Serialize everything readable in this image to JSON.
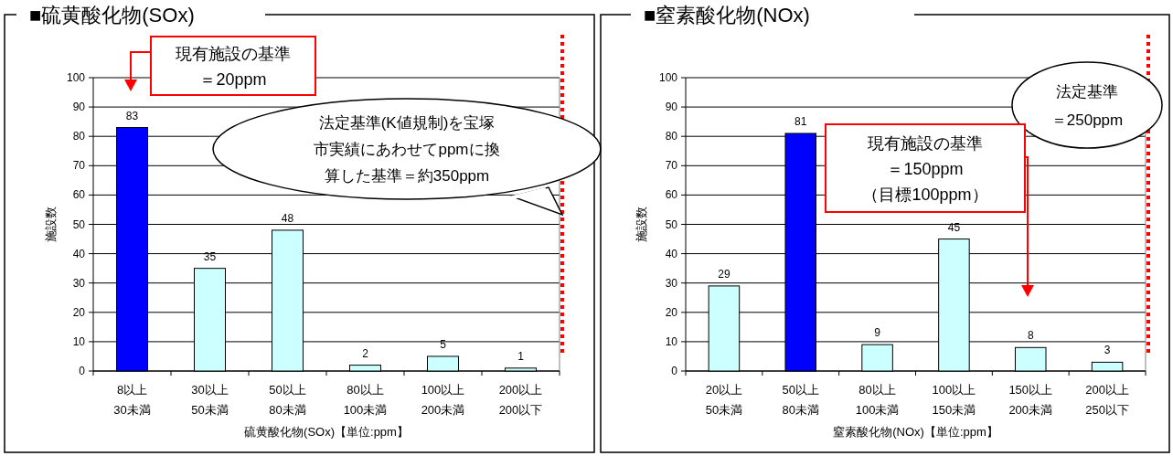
{
  "chart_data": [
    {
      "type": "bar",
      "title": "■硫黄酸化物(SOx)",
      "xlabel": "硫黄酸化物(SOx)【単位:ppm】",
      "ylabel": "施設数",
      "categories": [
        "8以上\n30未満",
        "30以上\n50未満",
        "50以上\n80未満",
        "80以上\n100未満",
        "100以上\n200未満",
        "200以上\n200以下"
      ],
      "values": [
        83,
        35,
        48,
        2,
        5,
        1
      ],
      "colors": [
        "#0000ff",
        "#ccffff",
        "#ccffff",
        "#ccffff",
        "#ccffff",
        "#ccffff"
      ],
      "ylim": [
        0,
        100
      ],
      "yticks": [
        0,
        10,
        20,
        30,
        40,
        50,
        60,
        70,
        80,
        90,
        100
      ],
      "grid": "y",
      "data_labels": true,
      "annotations": [
        "現有施設の基準＝20ppm"
      ],
      "ref_lines": [
        {
          "axis": "x",
          "label": "法定基準(K値規制)を宝塚市実績にあわせてppmに換算した基準＝約350ppm",
          "color": "#ff0000",
          "line_style": "dotted"
        }
      ]
    },
    {
      "type": "bar",
      "title": "■窒素酸化物(NOx)",
      "xlabel": "窒素酸化物(NOx)【単位:ppm】",
      "ylabel": "施設数",
      "categories": [
        "20以上\n50未満",
        "50以上\n80未満",
        "80以上\n100未満",
        "100以上\n150未満",
        "150以上\n200未満",
        "200以上\n250以下"
      ],
      "values": [
        29,
        81,
        9,
        45,
        8,
        3
      ],
      "colors": [
        "#ccffff",
        "#0000ff",
        "#ccffff",
        "#ccffff",
        "#ccffff",
        "#ccffff"
      ],
      "ylim": [
        0,
        100
      ],
      "yticks": [
        0,
        10,
        20,
        30,
        40,
        50,
        60,
        70,
        80,
        90,
        100
      ],
      "grid": "y",
      "data_labels": true,
      "annotations": [
        "現有施設の基準＝150ppm（目標100ppm）"
      ],
      "ref_lines": [
        {
          "axis": "x",
          "label": "法定基準＝250ppm",
          "color": "#ff0000",
          "line_style": "dotted"
        }
      ]
    }
  ]
}
